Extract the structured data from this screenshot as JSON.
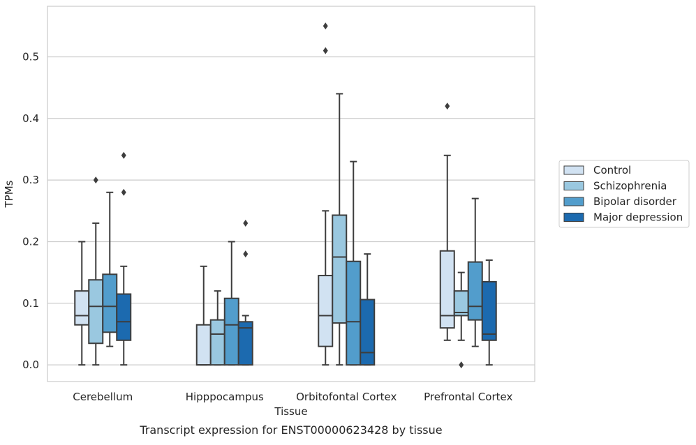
{
  "chart_data": {
    "type": "box",
    "caption": "Transcript expression for ENST00000623428 by tissue",
    "xlabel": "Tissue",
    "ylabel": "TPMs",
    "ylim": [
      -0.027,
      0.582
    ],
    "yticks": [
      0.0,
      0.1,
      0.2,
      0.3,
      0.4,
      0.5
    ],
    "ytick_labels": [
      "0.0",
      "0.1",
      "0.2",
      "0.3",
      "0.4",
      "0.5"
    ],
    "grid": "horizontal",
    "legend_position": "right",
    "categories": [
      "Cerebellum",
      "Hipppocampus",
      "Orbitofontal Cortex",
      "Prefrontal Cortex"
    ],
    "series": [
      {
        "name": "Control",
        "color": "#d1e2f2",
        "boxes": [
          {
            "whislo": 0.0,
            "q1": 0.065,
            "med": 0.08,
            "q3": 0.12,
            "whishi": 0.2,
            "fliers": []
          },
          {
            "whislo": 0.0,
            "q1": 0.0,
            "med": 0.0,
            "q3": 0.065,
            "whishi": 0.16,
            "fliers": []
          },
          {
            "whislo": 0.0,
            "q1": 0.03,
            "med": 0.08,
            "q3": 0.145,
            "whishi": 0.25,
            "fliers": [
              0.51,
              0.55
            ]
          },
          {
            "whislo": 0.04,
            "q1": 0.06,
            "med": 0.08,
            "q3": 0.185,
            "whishi": 0.34,
            "fliers": [
              0.42
            ]
          }
        ]
      },
      {
        "name": "Schizophrenia",
        "color": "#9ac8e0",
        "boxes": [
          {
            "whislo": 0.0,
            "q1": 0.035,
            "med": 0.095,
            "q3": 0.138,
            "whishi": 0.23,
            "fliers": [
              0.3
            ]
          },
          {
            "whislo": 0.0,
            "q1": 0.0,
            "med": 0.05,
            "q3": 0.073,
            "whishi": 0.12,
            "fliers": []
          },
          {
            "whislo": 0.0,
            "q1": 0.068,
            "med": 0.175,
            "q3": 0.243,
            "whishi": 0.44,
            "fliers": []
          },
          {
            "whislo": 0.04,
            "q1": 0.08,
            "med": 0.085,
            "q3": 0.12,
            "whishi": 0.15,
            "fliers": [
              0.0
            ]
          }
        ]
      },
      {
        "name": "Bipolar disorder",
        "color": "#529dcc",
        "boxes": [
          {
            "whislo": 0.03,
            "q1": 0.053,
            "med": 0.095,
            "q3": 0.147,
            "whishi": 0.28,
            "fliers": []
          },
          {
            "whislo": 0.0,
            "q1": 0.0,
            "med": 0.065,
            "q3": 0.108,
            "whishi": 0.2,
            "fliers": []
          },
          {
            "whislo": 0.0,
            "q1": 0.0,
            "med": 0.07,
            "q3": 0.168,
            "whishi": 0.33,
            "fliers": []
          },
          {
            "whislo": 0.03,
            "q1": 0.073,
            "med": 0.095,
            "q3": 0.167,
            "whishi": 0.27,
            "fliers": []
          }
        ]
      },
      {
        "name": "Major depression",
        "color": "#1c6aaf",
        "boxes": [
          {
            "whislo": 0.0,
            "q1": 0.04,
            "med": 0.07,
            "q3": 0.115,
            "whishi": 0.16,
            "fliers": [
              0.28,
              0.34
            ]
          },
          {
            "whislo": 0.0,
            "q1": 0.0,
            "med": 0.06,
            "q3": 0.07,
            "whishi": 0.08,
            "fliers": [
              0.18,
              0.23
            ]
          },
          {
            "whislo": 0.0,
            "q1": 0.0,
            "med": 0.02,
            "q3": 0.106,
            "whishi": 0.18,
            "fliers": []
          },
          {
            "whislo": 0.0,
            "q1": 0.04,
            "med": 0.05,
            "q3": 0.135,
            "whishi": 0.17,
            "fliers": []
          }
        ]
      }
    ]
  }
}
